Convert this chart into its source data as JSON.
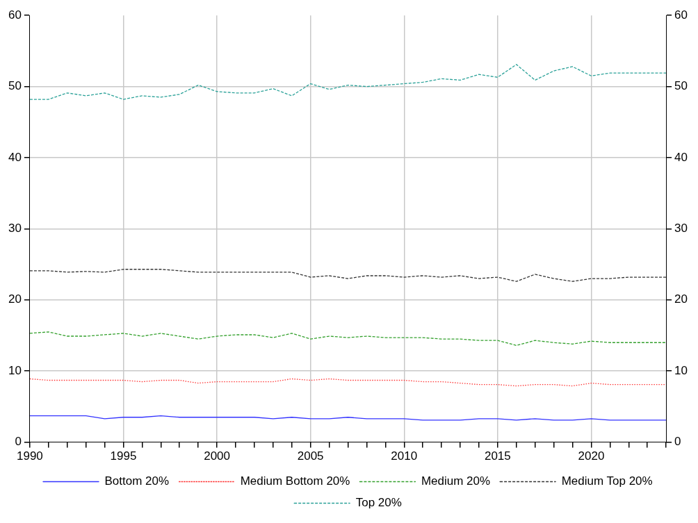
{
  "chart_data": {
    "type": "line",
    "x": [
      1990,
      1991,
      1992,
      1993,
      1994,
      1995,
      1996,
      1997,
      1998,
      1999,
      2000,
      2001,
      2002,
      2003,
      2004,
      2005,
      2006,
      2007,
      2008,
      2009,
      2010,
      2011,
      2012,
      2013,
      2014,
      2015,
      2016,
      2017,
      2018,
      2019,
      2020,
      2021,
      2022,
      2023,
      2024
    ],
    "series": [
      {
        "name": "Bottom 20%",
        "color": "#3333ff",
        "line_style": "solid",
        "values": [
          3.7,
          3.7,
          3.7,
          3.7,
          3.3,
          3.5,
          3.5,
          3.7,
          3.5,
          3.5,
          3.5,
          3.5,
          3.5,
          3.3,
          3.5,
          3.3,
          3.3,
          3.5,
          3.3,
          3.3,
          3.3,
          3.1,
          3.1,
          3.1,
          3.3,
          3.3,
          3.1,
          3.3,
          3.1,
          3.1,
          3.3,
          3.1,
          3.1,
          3.1,
          3.1
        ]
      },
      {
        "name": "Medium Bottom 20%",
        "color": "#ff3333",
        "line_style": "dotted",
        "values": [
          8.9,
          8.7,
          8.7,
          8.7,
          8.7,
          8.7,
          8.5,
          8.7,
          8.7,
          8.3,
          8.5,
          8.5,
          8.5,
          8.5,
          8.9,
          8.7,
          8.9,
          8.7,
          8.7,
          8.7,
          8.7,
          8.5,
          8.5,
          8.3,
          8.1,
          8.1,
          7.9,
          8.1,
          8.1,
          7.9,
          8.3,
          8.1,
          8.1,
          8.1,
          8.1
        ]
      },
      {
        "name": "Medium 20%",
        "color": "#33a02c",
        "line_style": "dashed",
        "values": [
          15.3,
          15.5,
          14.9,
          14.9,
          15.1,
          15.3,
          14.9,
          15.3,
          14.9,
          14.5,
          14.9,
          15.1,
          15.1,
          14.7,
          15.3,
          14.5,
          14.9,
          14.7,
          14.9,
          14.7,
          14.7,
          14.7,
          14.5,
          14.5,
          14.3,
          14.3,
          13.6,
          14.3,
          14.0,
          13.8,
          14.2,
          14.0,
          14.0,
          14.0,
          14.0
        ]
      },
      {
        "name": "Medium Top 20%",
        "color": "#333333",
        "line_style": "dashed",
        "values": [
          24.1,
          24.1,
          23.9,
          24.0,
          23.9,
          24.3,
          24.3,
          24.3,
          24.1,
          23.9,
          23.9,
          23.9,
          23.9,
          23.9,
          23.9,
          23.2,
          23.4,
          23.0,
          23.4,
          23.4,
          23.2,
          23.4,
          23.2,
          23.4,
          23.0,
          23.2,
          22.6,
          23.6,
          23.0,
          22.6,
          23.0,
          23.0,
          23.2,
          23.2,
          23.2
        ]
      },
      {
        "name": "Top 20%",
        "color": "#2aa198",
        "line_style": "dashed",
        "values": [
          48.2,
          48.2,
          49.1,
          48.7,
          49.1,
          48.2,
          48.7,
          48.5,
          48.9,
          50.2,
          49.3,
          49.1,
          49.1,
          49.7,
          48.7,
          50.4,
          49.6,
          50.2,
          50.0,
          50.2,
          50.4,
          50.6,
          51.1,
          50.9,
          51.7,
          51.3,
          53.1,
          50.9,
          52.2,
          52.8,
          51.5,
          51.9,
          51.9,
          51.9,
          51.9
        ]
      }
    ],
    "xlim": [
      1990,
      2024
    ],
    "xticks": [
      1990,
      {
        "value": 1991,
        "label": null
      },
      {
        "value": 1992,
        "label": null
      },
      {
        "value": 1993,
        "label": null
      },
      {
        "value": 1994,
        "label": null
      },
      1995,
      {
        "value": 1996,
        "label": null
      },
      {
        "value": 1997,
        "label": null
      },
      {
        "value": 1998,
        "label": null
      },
      {
        "value": 1999,
        "label": null
      },
      2000,
      {
        "value": 2001,
        "label": null
      },
      {
        "value": 2002,
        "label": null
      },
      {
        "value": 2003,
        "label": null
      },
      {
        "value": 2004,
        "label": null
      },
      2005,
      {
        "value": 2006,
        "label": null
      },
      {
        "value": 2007,
        "label": null
      },
      {
        "value": 2008,
        "label": null
      },
      {
        "value": 2009,
        "label": null
      },
      2010,
      {
        "value": 2011,
        "label": null
      },
      {
        "value": 2012,
        "label": null
      },
      {
        "value": 2013,
        "label": null
      },
      {
        "value": 2014,
        "label": null
      },
      2015,
      {
        "value": 2016,
        "label": null
      },
      {
        "value": 2017,
        "label": null
      },
      {
        "value": 2018,
        "label": null
      },
      {
        "value": 2019,
        "label": null
      },
      2020,
      {
        "value": 2021,
        "label": null
      },
      {
        "value": 2022,
        "label": null
      },
      {
        "value": 2023,
        "label": null
      },
      {
        "value": 2024,
        "label": null
      }
    ],
    "ylim": [
      0,
      60
    ],
    "yticks": [
      0,
      10,
      20,
      30,
      40,
      50,
      60
    ],
    "y2lim": [
      0,
      60
    ],
    "y2ticks": [
      0,
      10,
      20,
      30,
      40,
      50,
      60
    ],
    "grid": true,
    "legend": "bottom",
    "marker": "none"
  }
}
